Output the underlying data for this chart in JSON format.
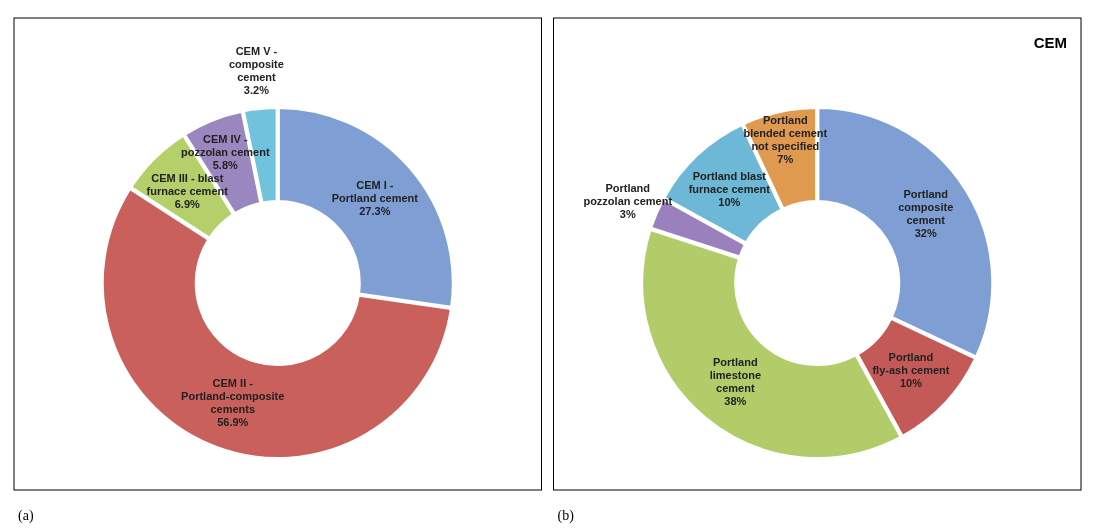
{
  "chart_data": [
    {
      "type": "donut",
      "categories": [
        "CEM I -  Portland cement",
        "CEM II -  Portland-composite cements",
        "CEM III - blast furnace cement",
        "CEM IV - pozzolan cement",
        "CEM V - composite cement"
      ],
      "values": [
        27.3,
        56.9,
        6.9,
        5.8,
        3.2
      ],
      "value_labels": [
        "27.3%",
        "56.9%",
        "6.9%",
        "5.8%",
        "3.2%"
      ],
      "colors": [
        "#7f9fd4",
        "#c9605c",
        "#b5cf6a",
        "#9b87bf",
        "#6fc3dc"
      ],
      "annotations": [
        "(a)"
      ]
    },
    {
      "type": "donut",
      "title": "CEM",
      "categories": [
        "Portland composite cement",
        "Portland fly-ash cement",
        "Portland limestone cement",
        "Portland pozzolan cement",
        "Portland blast furnace cement",
        "Portland blended cement not specified"
      ],
      "values": [
        32,
        10,
        38,
        3,
        10,
        7
      ],
      "value_labels": [
        "32%",
        "10%",
        "38%",
        "3%",
        "10%",
        "7%"
      ],
      "colors": [
        "#7f9fd4",
        "#c45a57",
        "#b3cc6a",
        "#9a80bd",
        "#6cb8d6",
        "#e09a50"
      ],
      "annotations": [
        "(b)"
      ]
    }
  ]
}
